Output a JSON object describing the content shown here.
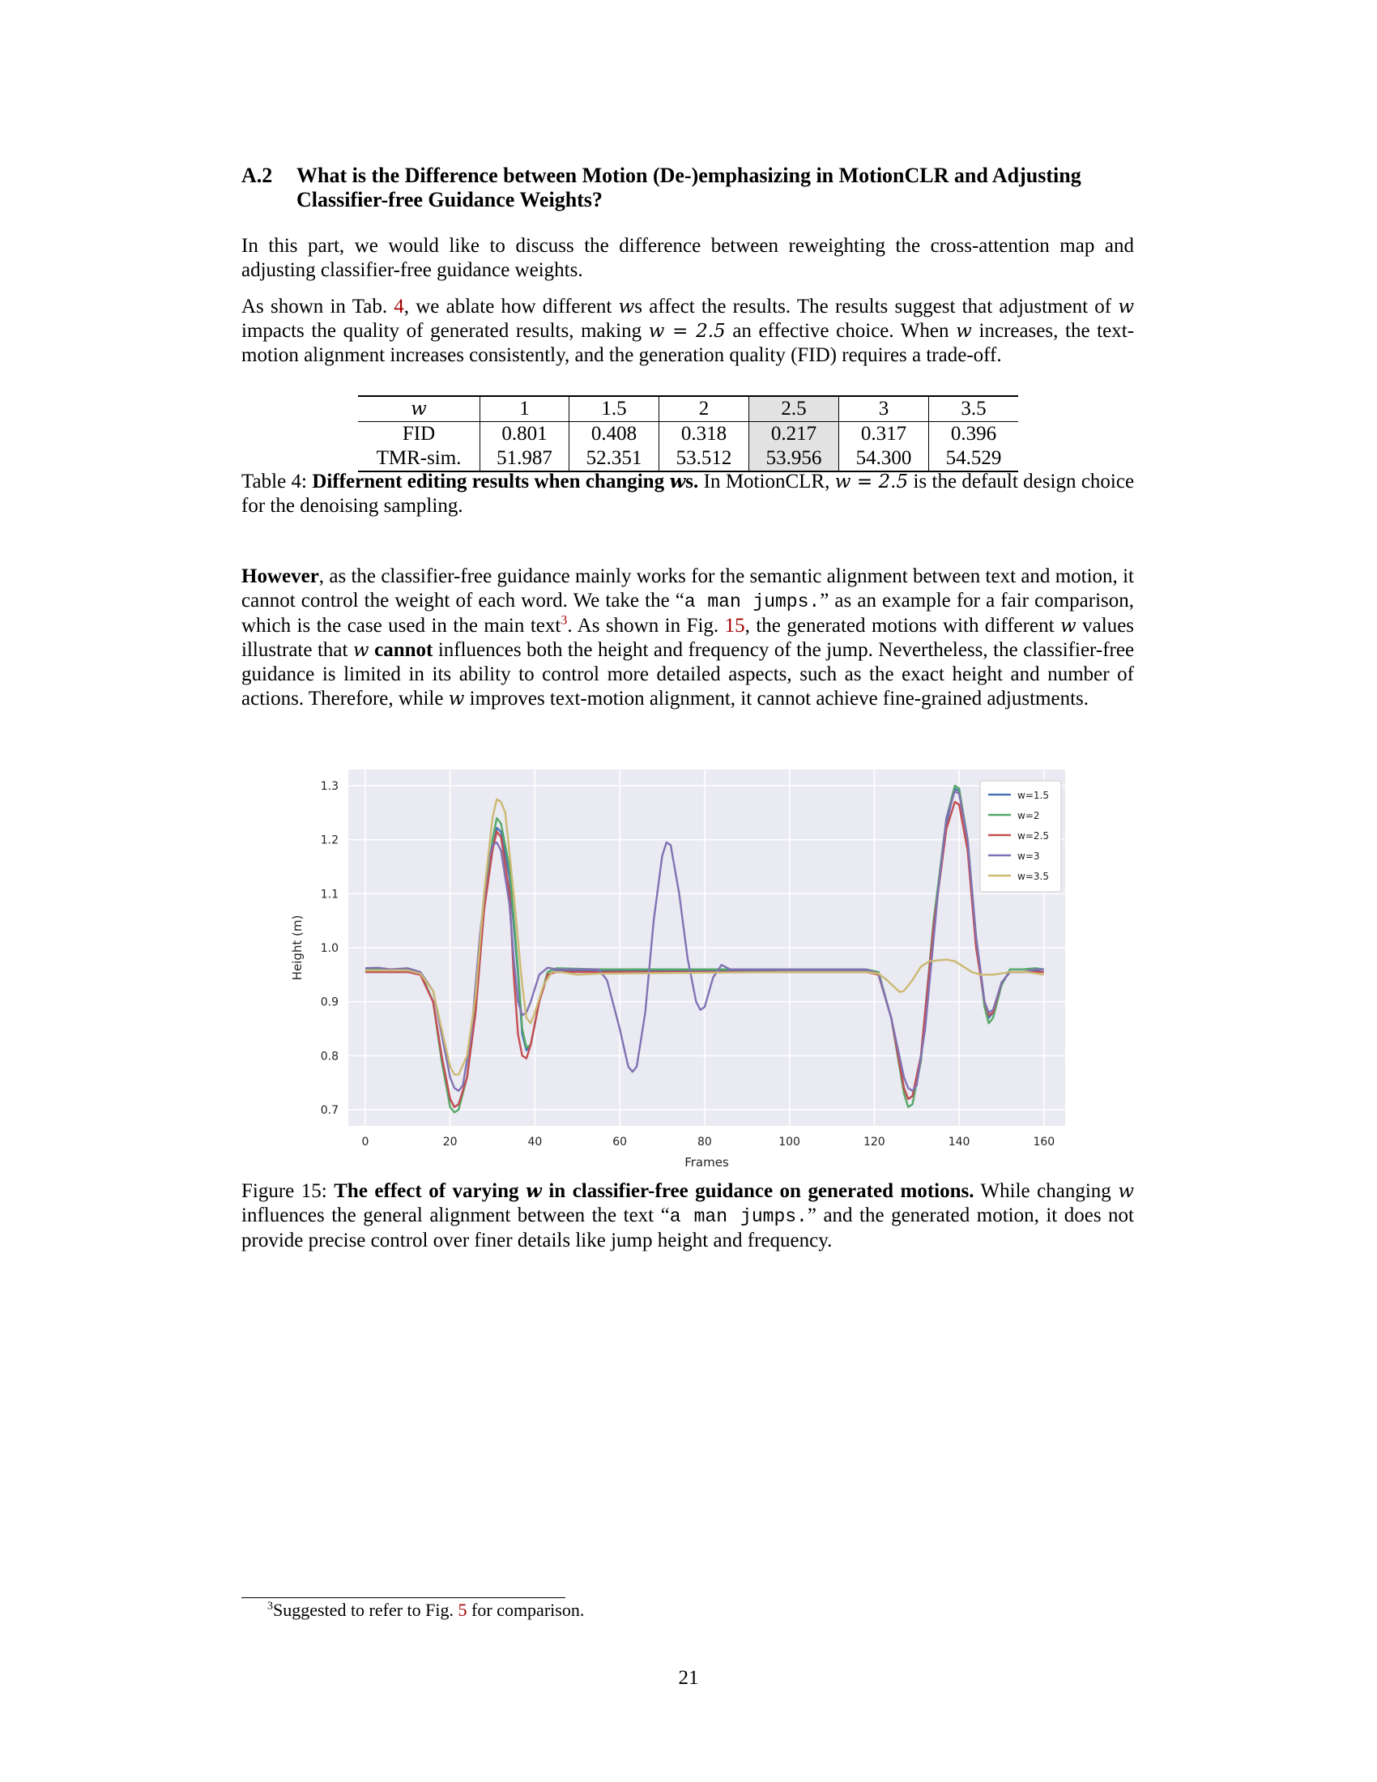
{
  "section": {
    "number": "A.2",
    "title": "What is the Difference between Motion (De-)emphasizing in MotionCLR and Adjusting Classifier-free Guidance Weights?"
  },
  "para1": "In this part, we would like to discuss the difference between reweighting the cross-attention map and adjusting classifier-free guidance weights.",
  "para2": {
    "a": "As shown in Tab.",
    "ref": "4",
    "b": ", we ablate how different",
    "w": "w",
    "c": "s affect the results. The results suggest that adjustment of",
    "d": "impacts the quality of generated results, making",
    "eq": "w = 2.5",
    "e": "an effective choice. When",
    "f": "increases, the text-motion alignment increases consistently, and the generation quality (FID) requires a trade-off."
  },
  "table": {
    "header": [
      "w",
      "1",
      "1.5",
      "2",
      "2.5",
      "3",
      "3.5"
    ],
    "rows": [
      [
        "FID",
        "0.801",
        "0.408",
        "0.318",
        "0.217",
        "0.317",
        "0.396"
      ],
      [
        "TMR-sim.",
        "51.987",
        "52.351",
        "53.512",
        "53.956",
        "54.300",
        "54.529"
      ]
    ],
    "highlight_column": "2.5",
    "highlight_color": "#e2e2e2"
  },
  "table_caption": {
    "label": "Table 4:",
    "bold": "Differnent editing results when changing",
    "w": "w",
    "bold_s": "s.",
    "rest_a": "In MotionCLR,",
    "eq": "w = 2.5",
    "rest_b": "is the default design choice for the denoising sampling."
  },
  "para3": {
    "bold": "However",
    "a": ", as the classifier-free guidance mainly works for the semantic alignment between text and motion, it cannot control the weight of each word. We take the “",
    "code": "a man jumps.",
    "b": "” as an example for a fair comparison, which is the case used in the main text",
    "sup": "3",
    "c": ". As shown in Fig.",
    "ref": "15",
    "d": ", the generated motions with different",
    "w": "w",
    "e": "values illustrate that",
    "bold2": "cannot",
    "f": "influences both the height and frequency of the jump. Nevertheless, the classifier-free guidance is limited in its ability to control more detailed aspects, such as the exact height and number of actions. Therefore, while",
    "g": "improves text-motion alignment, it cannot achieve fine-grained adjustments."
  },
  "figure_caption": {
    "label": "Figure 15:",
    "bold_a": "The effect of varying",
    "w": "w",
    "bold_b": "in classifier-free guidance on generated motions.",
    "a": "While changing",
    "b": "influences the general alignment between the text “",
    "code": "a man jumps.",
    "c": "” and the generated motion, it does not provide precise control over finer details like jump height and frequency."
  },
  "footnote": {
    "mark": "3",
    "a": "Suggested to refer to Fig.",
    "ref": "5",
    "b": "for comparison."
  },
  "page_number": "21",
  "colors": {
    "link": "#a30000",
    "plot_bg": "#eaeaf2"
  },
  "chart_data": {
    "type": "line",
    "xlabel": "Frames",
    "ylabel": "Height (m)",
    "xlim": [
      -4,
      165
    ],
    "ylim": [
      0.67,
      1.33
    ],
    "xticks": [
      0,
      20,
      40,
      60,
      80,
      100,
      120,
      140,
      160
    ],
    "yticks": [
      0.7,
      0.8,
      0.9,
      1.0,
      1.1,
      1.2,
      1.3
    ],
    "grid": true,
    "legend_position": "top-right",
    "series": [
      {
        "name": "w=1.5",
        "color": "#4c72b0",
        "points": [
          [
            0,
            0.955
          ],
          [
            5,
            0.955
          ],
          [
            10,
            0.955
          ],
          [
            13,
            0.95
          ],
          [
            16,
            0.9
          ],
          [
            18,
            0.8
          ],
          [
            20,
            0.72
          ],
          [
            21,
            0.705
          ],
          [
            22,
            0.71
          ],
          [
            24,
            0.76
          ],
          [
            26,
            0.88
          ],
          [
            28,
            1.07
          ],
          [
            30,
            1.18
          ],
          [
            31,
            1.222
          ],
          [
            32,
            1.215
          ],
          [
            34,
            1.13
          ],
          [
            36,
            0.95
          ],
          [
            37,
            0.84
          ],
          [
            38,
            0.81
          ],
          [
            39,
            0.82
          ],
          [
            41,
            0.9
          ],
          [
            43,
            0.95
          ],
          [
            45,
            0.958
          ],
          [
            55,
            0.958
          ],
          [
            100,
            0.957
          ],
          [
            118,
            0.957
          ],
          [
            121,
            0.95
          ],
          [
            124,
            0.87
          ],
          [
            127,
            0.74
          ],
          [
            128,
            0.72
          ],
          [
            129,
            0.725
          ],
          [
            131,
            0.8
          ],
          [
            134,
            1.05
          ],
          [
            137,
            1.23
          ],
          [
            139,
            1.295
          ],
          [
            140,
            1.29
          ],
          [
            142,
            1.2
          ],
          [
            144,
            1.02
          ],
          [
            146,
            0.9
          ],
          [
            147,
            0.87
          ],
          [
            148,
            0.88
          ],
          [
            150,
            0.935
          ],
          [
            152,
            0.955
          ],
          [
            155,
            0.955
          ],
          [
            158,
            0.958
          ],
          [
            160,
            0.955
          ]
        ]
      },
      {
        "name": "w=2",
        "color": "#55a868",
        "points": [
          [
            0,
            0.96
          ],
          [
            5,
            0.96
          ],
          [
            10,
            0.96
          ],
          [
            13,
            0.955
          ],
          [
            16,
            0.9
          ],
          [
            18,
            0.79
          ],
          [
            20,
            0.705
          ],
          [
            21,
            0.695
          ],
          [
            22,
            0.7
          ],
          [
            24,
            0.76
          ],
          [
            26,
            0.89
          ],
          [
            28,
            1.08
          ],
          [
            30,
            1.2
          ],
          [
            31,
            1.24
          ],
          [
            32,
            1.23
          ],
          [
            34,
            1.15
          ],
          [
            36,
            0.96
          ],
          [
            37,
            0.85
          ],
          [
            38,
            0.815
          ],
          [
            39,
            0.82
          ],
          [
            41,
            0.9
          ],
          [
            43,
            0.955
          ],
          [
            45,
            0.962
          ],
          [
            55,
            0.96
          ],
          [
            100,
            0.96
          ],
          [
            118,
            0.96
          ],
          [
            121,
            0.955
          ],
          [
            124,
            0.87
          ],
          [
            127,
            0.73
          ],
          [
            128,
            0.705
          ],
          [
            129,
            0.71
          ],
          [
            131,
            0.79
          ],
          [
            134,
            1.05
          ],
          [
            137,
            1.24
          ],
          [
            139,
            1.3
          ],
          [
            140,
            1.295
          ],
          [
            142,
            1.2
          ],
          [
            144,
            1.02
          ],
          [
            146,
            0.89
          ],
          [
            147,
            0.86
          ],
          [
            148,
            0.87
          ],
          [
            150,
            0.93
          ],
          [
            152,
            0.96
          ],
          [
            155,
            0.96
          ],
          [
            158,
            0.962
          ],
          [
            160,
            0.96
          ]
        ]
      },
      {
        "name": "w=2.5",
        "color": "#c44e52",
        "points": [
          [
            0,
            0.955
          ],
          [
            5,
            0.955
          ],
          [
            10,
            0.955
          ],
          [
            13,
            0.95
          ],
          [
            16,
            0.9
          ],
          [
            18,
            0.8
          ],
          [
            20,
            0.72
          ],
          [
            21,
            0.705
          ],
          [
            22,
            0.71
          ],
          [
            24,
            0.76
          ],
          [
            26,
            0.88
          ],
          [
            28,
            1.07
          ],
          [
            30,
            1.18
          ],
          [
            31,
            1.215
          ],
          [
            32,
            1.205
          ],
          [
            34,
            1.1
          ],
          [
            35,
            0.95
          ],
          [
            36,
            0.84
          ],
          [
            37,
            0.8
          ],
          [
            38,
            0.795
          ],
          [
            39,
            0.82
          ],
          [
            41,
            0.9
          ],
          [
            43,
            0.95
          ],
          [
            45,
            0.955
          ],
          [
            55,
            0.955
          ],
          [
            100,
            0.955
          ],
          [
            118,
            0.955
          ],
          [
            121,
            0.95
          ],
          [
            124,
            0.87
          ],
          [
            127,
            0.74
          ],
          [
            128,
            0.72
          ],
          [
            129,
            0.725
          ],
          [
            131,
            0.8
          ],
          [
            134,
            1.04
          ],
          [
            137,
            1.22
          ],
          [
            139,
            1.27
          ],
          [
            140,
            1.265
          ],
          [
            142,
            1.18
          ],
          [
            144,
            1.0
          ],
          [
            146,
            0.9
          ],
          [
            147,
            0.875
          ],
          [
            148,
            0.88
          ],
          [
            150,
            0.935
          ],
          [
            152,
            0.955
          ],
          [
            155,
            0.955
          ],
          [
            158,
            0.955
          ],
          [
            160,
            0.955
          ]
        ]
      },
      {
        "name": "w=3",
        "color": "#8172b3",
        "points": [
          [
            0,
            0.962
          ],
          [
            3,
            0.963
          ],
          [
            6,
            0.96
          ],
          [
            10,
            0.962
          ],
          [
            13,
            0.955
          ],
          [
            16,
            0.92
          ],
          [
            18,
            0.84
          ],
          [
            20,
            0.76
          ],
          [
            21,
            0.74
          ],
          [
            22,
            0.735
          ],
          [
            23,
            0.745
          ],
          [
            25,
            0.84
          ],
          [
            27,
            1.02
          ],
          [
            29,
            1.16
          ],
          [
            30,
            1.19
          ],
          [
            31,
            1.195
          ],
          [
            32,
            1.18
          ],
          [
            34,
            1.08
          ],
          [
            35,
            0.98
          ],
          [
            36,
            0.9
          ],
          [
            37,
            0.875
          ],
          [
            38,
            0.88
          ],
          [
            39,
            0.9
          ],
          [
            41,
            0.95
          ],
          [
            43,
            0.963
          ],
          [
            45,
            0.96
          ],
          [
            55,
            0.96
          ],
          [
            57,
            0.94
          ],
          [
            60,
            0.85
          ],
          [
            62,
            0.78
          ],
          [
            63,
            0.77
          ],
          [
            64,
            0.78
          ],
          [
            66,
            0.88
          ],
          [
            68,
            1.05
          ],
          [
            70,
            1.17
          ],
          [
            71,
            1.195
          ],
          [
            72,
            1.19
          ],
          [
            74,
            1.1
          ],
          [
            76,
            0.98
          ],
          [
            78,
            0.9
          ],
          [
            79,
            0.885
          ],
          [
            80,
            0.89
          ],
          [
            82,
            0.945
          ],
          [
            84,
            0.968
          ],
          [
            86,
            0.96
          ],
          [
            100,
            0.96
          ],
          [
            118,
            0.96
          ],
          [
            121,
            0.952
          ],
          [
            124,
            0.87
          ],
          [
            127,
            0.76
          ],
          [
            128,
            0.74
          ],
          [
            129,
            0.735
          ],
          [
            130,
            0.745
          ],
          [
            132,
            0.85
          ],
          [
            135,
            1.1
          ],
          [
            137,
            1.24
          ],
          [
            139,
            1.29
          ],
          [
            140,
            1.285
          ],
          [
            142,
            1.2
          ],
          [
            144,
            1.02
          ],
          [
            146,
            0.9
          ],
          [
            147,
            0.88
          ],
          [
            148,
            0.885
          ],
          [
            150,
            0.935
          ],
          [
            152,
            0.955
          ],
          [
            155,
            0.955
          ],
          [
            158,
            0.96
          ],
          [
            160,
            0.96
          ]
        ]
      },
      {
        "name": "w=3.5",
        "color": "#ccb974",
        "points": [
          [
            0,
            0.958
          ],
          [
            5,
            0.958
          ],
          [
            10,
            0.958
          ],
          [
            13,
            0.952
          ],
          [
            16,
            0.92
          ],
          [
            18,
            0.85
          ],
          [
            20,
            0.78
          ],
          [
            21,
            0.765
          ],
          [
            22,
            0.765
          ],
          [
            24,
            0.8
          ],
          [
            26,
            0.91
          ],
          [
            28,
            1.1
          ],
          [
            30,
            1.24
          ],
          [
            31,
            1.275
          ],
          [
            32,
            1.27
          ],
          [
            33,
            1.25
          ],
          [
            35,
            1.1
          ],
          [
            37,
            0.93
          ],
          [
            38,
            0.87
          ],
          [
            39,
            0.86
          ],
          [
            40,
            0.88
          ],
          [
            42,
            0.93
          ],
          [
            44,
            0.955
          ],
          [
            46,
            0.955
          ],
          [
            50,
            0.95
          ],
          [
            55,
            0.952
          ],
          [
            100,
            0.955
          ],
          [
            115,
            0.955
          ],
          [
            118,
            0.955
          ],
          [
            121,
            0.952
          ],
          [
            123,
            0.94
          ],
          [
            125,
            0.925
          ],
          [
            126,
            0.918
          ],
          [
            127,
            0.92
          ],
          [
            129,
            0.94
          ],
          [
            131,
            0.965
          ],
          [
            133,
            0.975
          ],
          [
            137,
            0.978
          ],
          [
            139,
            0.975
          ],
          [
            141,
            0.965
          ],
          [
            143,
            0.955
          ],
          [
            145,
            0.95
          ],
          [
            148,
            0.95
          ],
          [
            152,
            0.955
          ],
          [
            156,
            0.955
          ],
          [
            160,
            0.95
          ]
        ]
      }
    ]
  }
}
